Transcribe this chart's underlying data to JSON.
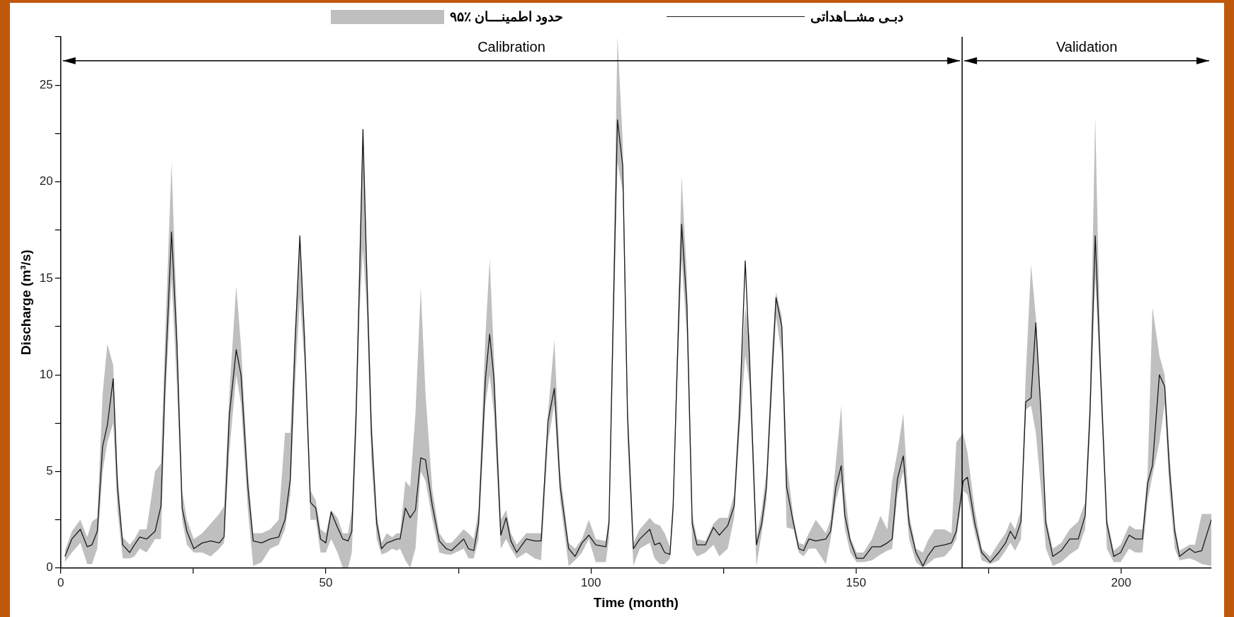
{
  "chart_data": {
    "type": "line",
    "xlabel": "Time (month)",
    "ylabel": "Discharge (m³/s)",
    "xlim": [
      0,
      217
    ],
    "ylim": [
      0,
      27.5
    ],
    "xticks": [
      0,
      {
        "value": 25,
        "label": null
      },
      50,
      {
        "value": 75,
        "label": null
      },
      100,
      {
        "value": 125,
        "label": null
      },
      150,
      {
        "value": 175,
        "label": null
      },
      200
    ],
    "yticks": [
      0,
      {
        "value": 2.5,
        "label": null
      },
      5,
      {
        "value": 7.5,
        "label": null
      },
      10,
      {
        "value": 12.5,
        "label": null
      },
      15,
      {
        "value": 17.5,
        "label": null
      },
      20,
      {
        "value": 22.5,
        "label": null
      },
      25,
      {
        "value": 27.5,
        "label": null
      }
    ],
    "legend": "top",
    "marker": "none",
    "line_style": "solid",
    "ref_lines": [
      {
        "axis": "x",
        "value": 170,
        "color": "#000000",
        "line_style": "solid"
      }
    ],
    "annotations": [
      "حدود اطمینـــان ٪۹۵",
      "Calibration",
      "Validation"
    ],
    "series": [
      {
        "name": "دبـی مشــاهداتی",
        "color": "#1a1a1a",
        "x": [
          0.8,
          2.1,
          3.7,
          5.0,
          5.9,
          6.9,
          7.9,
          8.8,
          9.9,
          10.7,
          11.7,
          13.0,
          13.9,
          14.9,
          16.2,
          17.8,
          18.9,
          19.7,
          20.9,
          21.9,
          22.9,
          23.8,
          25.1,
          26.7,
          28.3,
          29.9,
          30.8,
          31.8,
          33.1,
          34.0,
          35.3,
          36.3,
          37.9,
          39.5,
          41.1,
          42.3,
          43.3,
          44.2,
          45.1,
          46.0,
          47.1,
          48.1,
          49.0,
          50.0,
          51.0,
          52.2,
          53.2,
          54.2,
          54.9,
          55.7,
          56.4,
          57.0,
          57.7,
          58.6,
          59.6,
          60.5,
          61.5,
          62.5,
          63.4,
          64.0,
          65.0,
          65.9,
          66.9,
          67.9,
          68.8,
          70.1,
          71.4,
          72.7,
          73.7,
          76.0,
          76.9,
          77.9,
          78.8,
          80.1,
          80.9,
          81.7,
          83.0,
          84.0,
          84.9,
          86.0,
          87.8,
          89.4,
          90.6,
          91.9,
          93.1,
          94.2,
          95.8,
          97.0,
          98.3,
          99.6,
          100.9,
          102.8,
          103.4,
          104.1,
          105.0,
          106.0,
          106.9,
          108.0,
          109.2,
          111.1,
          112.0,
          113.0,
          113.9,
          114.9,
          115.5,
          116.2,
          117.1,
          118.1,
          119.1,
          120.0,
          121.6,
          123.1,
          124.2,
          125.8,
          127.0,
          128.0,
          129.1,
          129.9,
          131.2,
          132.2,
          133.1,
          134.1,
          134.9,
          136.0,
          136.9,
          138.2,
          139.2,
          140.1,
          141.1,
          142.4,
          144.3,
          145.2,
          146.2,
          147.2,
          147.9,
          148.9,
          150.1,
          151.4,
          153.0,
          154.6,
          155.9,
          156.8,
          157.8,
          158.9,
          160.0,
          161.3,
          162.6,
          163.5,
          164.8,
          166.7,
          168.0,
          168.9,
          170.2,
          171.0,
          172.4,
          173.7,
          175.3,
          176.9,
          178.2,
          179.1,
          180.0,
          181.1,
          182.0,
          183.0,
          183.9,
          184.9,
          185.8,
          187.1,
          188.7,
          190.3,
          191.9,
          193.2,
          194.1,
          195.1,
          196.0,
          197.3,
          198.6,
          199.9,
          201.5,
          202.7,
          204.0,
          205.0,
          205.9,
          207.2,
          208.2,
          209.1,
          210.1,
          211.0,
          212.9,
          213.9,
          215.2,
          217.0
        ],
        "lower": [
          0.3,
          0.8,
          1.3,
          0.2,
          0.2,
          1.0,
          5.0,
          6.5,
          7.5,
          3.0,
          0.5,
          0.5,
          0.6,
          1.0,
          0.8,
          1.5,
          1.5,
          8.5,
          15.0,
          9.5,
          2.5,
          1.2,
          0.8,
          0.8,
          0.6,
          1.0,
          1.3,
          6.0,
          10.0,
          8.5,
          3.0,
          0.1,
          0.3,
          1.0,
          1.2,
          2.0,
          3.8,
          9.5,
          14.0,
          10.5,
          2.5,
          2.5,
          0.8,
          0.8,
          1.5,
          0.8,
          0.0,
          0.0,
          0.8,
          6.5,
          13.5,
          16.5,
          13.5,
          5.5,
          1.5,
          0.7,
          0.8,
          1.0,
          0.9,
          1.0,
          0.4,
          0.0,
          1.0,
          5.0,
          4.5,
          2.5,
          0.8,
          0.7,
          0.7,
          1.0,
          0.5,
          0.5,
          1.5,
          8.5,
          10.0,
          8.0,
          1.0,
          1.5,
          1.0,
          0.5,
          0.8,
          0.5,
          0.4,
          6.5,
          8.5,
          3.5,
          0.1,
          0.4,
          0.8,
          1.5,
          0.3,
          0.3,
          1.5,
          10.0,
          21.0,
          19.5,
          6.5,
          0.1,
          1.0,
          1.3,
          0.5,
          0.2,
          0.2,
          0.5,
          2.5,
          9.0,
          16.0,
          12.0,
          1.0,
          0.6,
          0.8,
          1.2,
          0.6,
          1.0,
          2.6,
          7.0,
          11.0,
          9.5,
          0.1,
          1.8,
          3.5,
          9.0,
          13.0,
          11.0,
          2.1,
          2.0,
          0.8,
          0.6,
          1.0,
          1.0,
          0.2,
          1.5,
          3.5,
          4.5,
          2.0,
          0.8,
          0.3,
          0.3,
          0.4,
          0.7,
          0.9,
          1.0,
          3.8,
          5.0,
          1.5,
          0.3,
          0.0,
          0.2,
          0.5,
          0.6,
          1.0,
          1.5,
          4.0,
          3.8,
          1.8,
          0.4,
          0.2,
          0.4,
          0.9,
          1.3,
          0.9,
          1.5,
          8.2,
          8.4,
          7.0,
          4.0,
          1.0,
          0.1,
          0.3,
          0.7,
          1.0,
          2.0,
          7.0,
          15.0,
          10.0,
          1.0,
          0.3,
          0.3,
          1.0,
          0.8,
          0.8,
          3.5,
          4.8,
          6.5,
          8.5,
          4.0,
          1.0,
          0.4,
          0.5,
          0.4,
          0.2,
          0.1
        ],
        "upper": [
          0.9,
          1.9,
          2.5,
          1.6,
          2.4,
          2.6,
          9.0,
          11.6,
          10.5,
          5.0,
          1.6,
          1.2,
          1.5,
          2.0,
          2.0,
          5.0,
          5.4,
          12.0,
          21.0,
          13.0,
          4.0,
          2.5,
          1.5,
          1.8,
          2.3,
          2.8,
          3.2,
          9.0,
          14.6,
          11.5,
          5.0,
          1.8,
          1.8,
          2.0,
          2.5,
          7.0,
          7.0,
          12.5,
          17.3,
          12.5,
          4.0,
          3.5,
          2.0,
          1.8,
          3.0,
          2.6,
          1.8,
          1.8,
          3.0,
          9.0,
          17.0,
          22.9,
          16.5,
          8.0,
          2.8,
          1.3,
          1.8,
          1.6,
          1.8,
          1.8,
          4.5,
          4.2,
          8.0,
          14.5,
          9.0,
          4.0,
          1.8,
          1.3,
          1.3,
          2.0,
          1.8,
          1.5,
          3.0,
          12.0,
          16.0,
          11.0,
          2.5,
          3.0,
          1.8,
          1.2,
          1.8,
          1.8,
          1.8,
          8.0,
          11.8,
          5.0,
          1.3,
          1.0,
          1.5,
          2.5,
          1.5,
          1.4,
          2.8,
          13.0,
          27.5,
          22.0,
          8.5,
          1.3,
          2.0,
          2.6,
          2.3,
          2.2,
          1.8,
          1.1,
          3.6,
          11.0,
          20.3,
          15.0,
          2.8,
          1.5,
          1.4,
          2.3,
          2.6,
          2.6,
          3.8,
          9.0,
          13.5,
          12.0,
          1.5,
          3.0,
          5.0,
          11.0,
          14.3,
          13.0,
          5.5,
          2.6,
          1.3,
          1.2,
          1.8,
          2.5,
          1.8,
          2.5,
          5.5,
          8.4,
          4.0,
          1.6,
          0.8,
          0.8,
          1.5,
          2.7,
          2.0,
          4.5,
          6.0,
          8.0,
          2.8,
          1.0,
          0.8,
          1.4,
          2.0,
          2.0,
          1.8,
          6.5,
          7.0,
          6.0,
          3.0,
          1.0,
          0.6,
          1.3,
          1.8,
          2.4,
          2.0,
          3.0,
          10.0,
          15.7,
          13.0,
          8.5,
          2.6,
          1.0,
          1.3,
          2.0,
          2.4,
          3.4,
          9.0,
          23.4,
          12.0,
          2.6,
          0.9,
          1.2,
          2.2,
          2.0,
          2.0,
          5.0,
          13.5,
          11.0,
          10.0,
          6.0,
          2.2,
          0.9,
          1.2,
          1.2,
          2.8,
          2.8
        ],
        "values": [
          0.6,
          1.5,
          2.0,
          1.1,
          1.2,
          1.9,
          6.3,
          7.4,
          9.8,
          4.2,
          1.2,
          0.8,
          1.2,
          1.6,
          1.5,
          1.9,
          3.2,
          9.8,
          17.4,
          11.7,
          3.1,
          1.9,
          1.0,
          1.3,
          1.4,
          1.3,
          1.6,
          7.9,
          11.3,
          10.0,
          4.2,
          1.4,
          1.3,
          1.5,
          1.6,
          2.5,
          4.6,
          11.7,
          17.2,
          11.7,
          3.4,
          3.1,
          1.5,
          1.3,
          2.9,
          2.1,
          1.5,
          1.4,
          1.9,
          7.9,
          15.5,
          22.7,
          15.5,
          7.0,
          2.3,
          1.0,
          1.3,
          1.4,
          1.5,
          1.5,
          3.1,
          2.6,
          3.0,
          5.7,
          5.6,
          3.2,
          1.4,
          1.0,
          0.9,
          1.5,
          1.0,
          0.9,
          2.3,
          9.8,
          12.1,
          9.8,
          1.7,
          2.6,
          1.4,
          0.8,
          1.5,
          1.4,
          1.4,
          7.6,
          9.3,
          4.2,
          1.0,
          0.6,
          1.3,
          1.7,
          1.2,
          1.1,
          2.3,
          11.7,
          23.2,
          20.8,
          7.9,
          1.0,
          1.5,
          2.0,
          1.2,
          1.3,
          0.8,
          0.7,
          3.2,
          9.8,
          17.8,
          13.6,
          2.3,
          1.2,
          1.2,
          2.1,
          1.7,
          2.2,
          3.2,
          7.9,
          15.9,
          10.8,
          1.2,
          2.3,
          4.2,
          9.8,
          14.0,
          12.5,
          4.2,
          2.3,
          1.0,
          0.9,
          1.5,
          1.4,
          1.5,
          1.9,
          4.2,
          5.3,
          2.7,
          1.4,
          0.5,
          0.5,
          1.1,
          1.1,
          1.3,
          1.5,
          4.6,
          5.8,
          2.3,
          0.8,
          0.1,
          0.6,
          1.1,
          1.2,
          1.3,
          1.9,
          4.5,
          4.7,
          2.3,
          0.8,
          0.3,
          0.8,
          1.3,
          1.9,
          1.5,
          2.4,
          8.6,
          8.8,
          12.7,
          7.9,
          2.3,
          0.6,
          0.9,
          1.5,
          1.5,
          2.7,
          7.9,
          17.2,
          10.8,
          2.3,
          0.6,
          0.8,
          1.7,
          1.5,
          1.5,
          4.4,
          5.3,
          10.0,
          9.4,
          5.1,
          1.9,
          0.6,
          1.0,
          0.8,
          0.9,
          2.5
        ]
      }
    ]
  }
}
